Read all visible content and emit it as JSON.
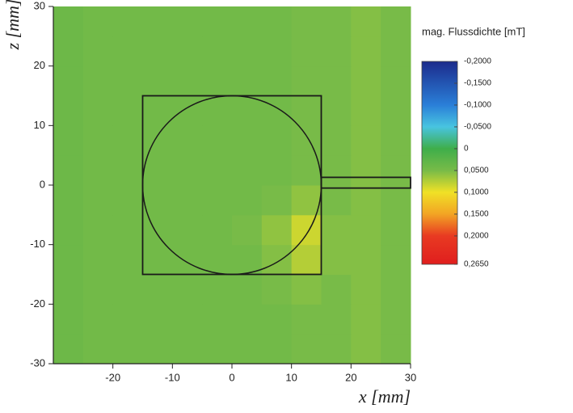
{
  "chart_data": {
    "type": "heatmap",
    "title": "mag. Flussdichte [mT]",
    "xlabel": "x [mm]",
    "ylabel": "z [mm]",
    "xlim": [
      -30,
      30
    ],
    "ylim": [
      -30,
      30
    ],
    "xticks": [
      -20,
      -10,
      0,
      10,
      20,
      30
    ],
    "yticks": [
      -30,
      -20,
      -10,
      0,
      10,
      20,
      30
    ],
    "x_bins": [
      -30,
      -25,
      -20,
      -15,
      -10,
      -5,
      0,
      5,
      10,
      15,
      20,
      25,
      30
    ],
    "y_bins": [
      -30,
      -25,
      -20,
      -15,
      -10,
      -5,
      0,
      5,
      10,
      15,
      20,
      25,
      30
    ],
    "values": [
      [
        0.04,
        0.045,
        0.045,
        0.045,
        0.045,
        0.045,
        0.045,
        0.045,
        0.05,
        0.05,
        0.055,
        0.05
      ],
      [
        0.04,
        0.045,
        0.045,
        0.045,
        0.045,
        0.045,
        0.045,
        0.045,
        0.05,
        0.05,
        0.055,
        0.05
      ],
      [
        0.04,
        0.045,
        0.045,
        0.045,
        0.045,
        0.045,
        0.045,
        0.05,
        0.055,
        0.05,
        0.055,
        0.05
      ],
      [
        0.04,
        0.045,
        0.045,
        0.045,
        0.045,
        0.045,
        0.045,
        0.055,
        0.075,
        0.055,
        0.055,
        0.05
      ],
      [
        0.04,
        0.045,
        0.045,
        0.045,
        0.045,
        0.045,
        0.05,
        0.06,
        0.085,
        0.055,
        0.055,
        0.05
      ],
      [
        0.04,
        0.045,
        0.045,
        0.045,
        0.045,
        0.045,
        0.045,
        0.05,
        0.06,
        0.05,
        0.055,
        0.05
      ],
      [
        0.04,
        0.045,
        0.045,
        0.045,
        0.045,
        0.045,
        0.045,
        0.045,
        0.05,
        0.05,
        0.055,
        0.05
      ],
      [
        0.04,
        0.045,
        0.045,
        0.045,
        0.045,
        0.045,
        0.045,
        0.045,
        0.05,
        0.05,
        0.055,
        0.05
      ],
      [
        0.04,
        0.045,
        0.045,
        0.045,
        0.045,
        0.045,
        0.045,
        0.045,
        0.05,
        0.05,
        0.055,
        0.05
      ],
      [
        0.04,
        0.045,
        0.045,
        0.045,
        0.045,
        0.045,
        0.045,
        0.045,
        0.05,
        0.05,
        0.055,
        0.05
      ],
      [
        0.04,
        0.045,
        0.045,
        0.045,
        0.045,
        0.045,
        0.045,
        0.045,
        0.05,
        0.05,
        0.055,
        0.05
      ],
      [
        0.04,
        0.045,
        0.045,
        0.045,
        0.045,
        0.045,
        0.045,
        0.045,
        0.05,
        0.05,
        0.055,
        0.05
      ]
    ],
    "colorbar_lim": [
      -0.2,
      0.265
    ],
    "colorbar_ticks": [
      {
        "value": -0.2,
        "label": "-0,2000"
      },
      {
        "value": -0.15,
        "label": "-0,1500"
      },
      {
        "value": -0.1,
        "label": "-0,1000"
      },
      {
        "value": -0.05,
        "label": "-0,0500"
      },
      0,
      {
        "value": 0.05,
        "label": "0,0500"
      },
      {
        "value": 0.1,
        "label": "0,1000"
      },
      {
        "value": 0.15,
        "label": "0,1500"
      },
      {
        "value": 0.2,
        "label": "0,2000"
      },
      {
        "value": 0.265,
        "label": "0,2650"
      }
    ],
    "colorscale": [
      {
        "value": -0.2,
        "color": "#1c2b8c"
      },
      {
        "value": -0.1,
        "color": "#2a7fd8"
      },
      {
        "value": -0.05,
        "color": "#48c4e0"
      },
      {
        "value": 0,
        "color": "#3fae4a"
      },
      {
        "value": 0.05,
        "color": "#78bb48"
      },
      {
        "value": 0.1,
        "color": "#f0e126"
      },
      {
        "value": 0.15,
        "color": "#f2a424"
      },
      {
        "value": 0.2,
        "color": "#e83a22"
      },
      {
        "value": 0.265,
        "color": "#e01e1e"
      }
    ],
    "shapes": [
      {
        "type": "rect",
        "x": [
          -15,
          15
        ],
        "y": [
          -15,
          15
        ]
      },
      {
        "type": "circle",
        "cx": 0,
        "cy": 0,
        "r": 15
      },
      {
        "type": "rect",
        "x": [
          15,
          30
        ],
        "y": [
          -0.5,
          1.3
        ]
      }
    ]
  }
}
